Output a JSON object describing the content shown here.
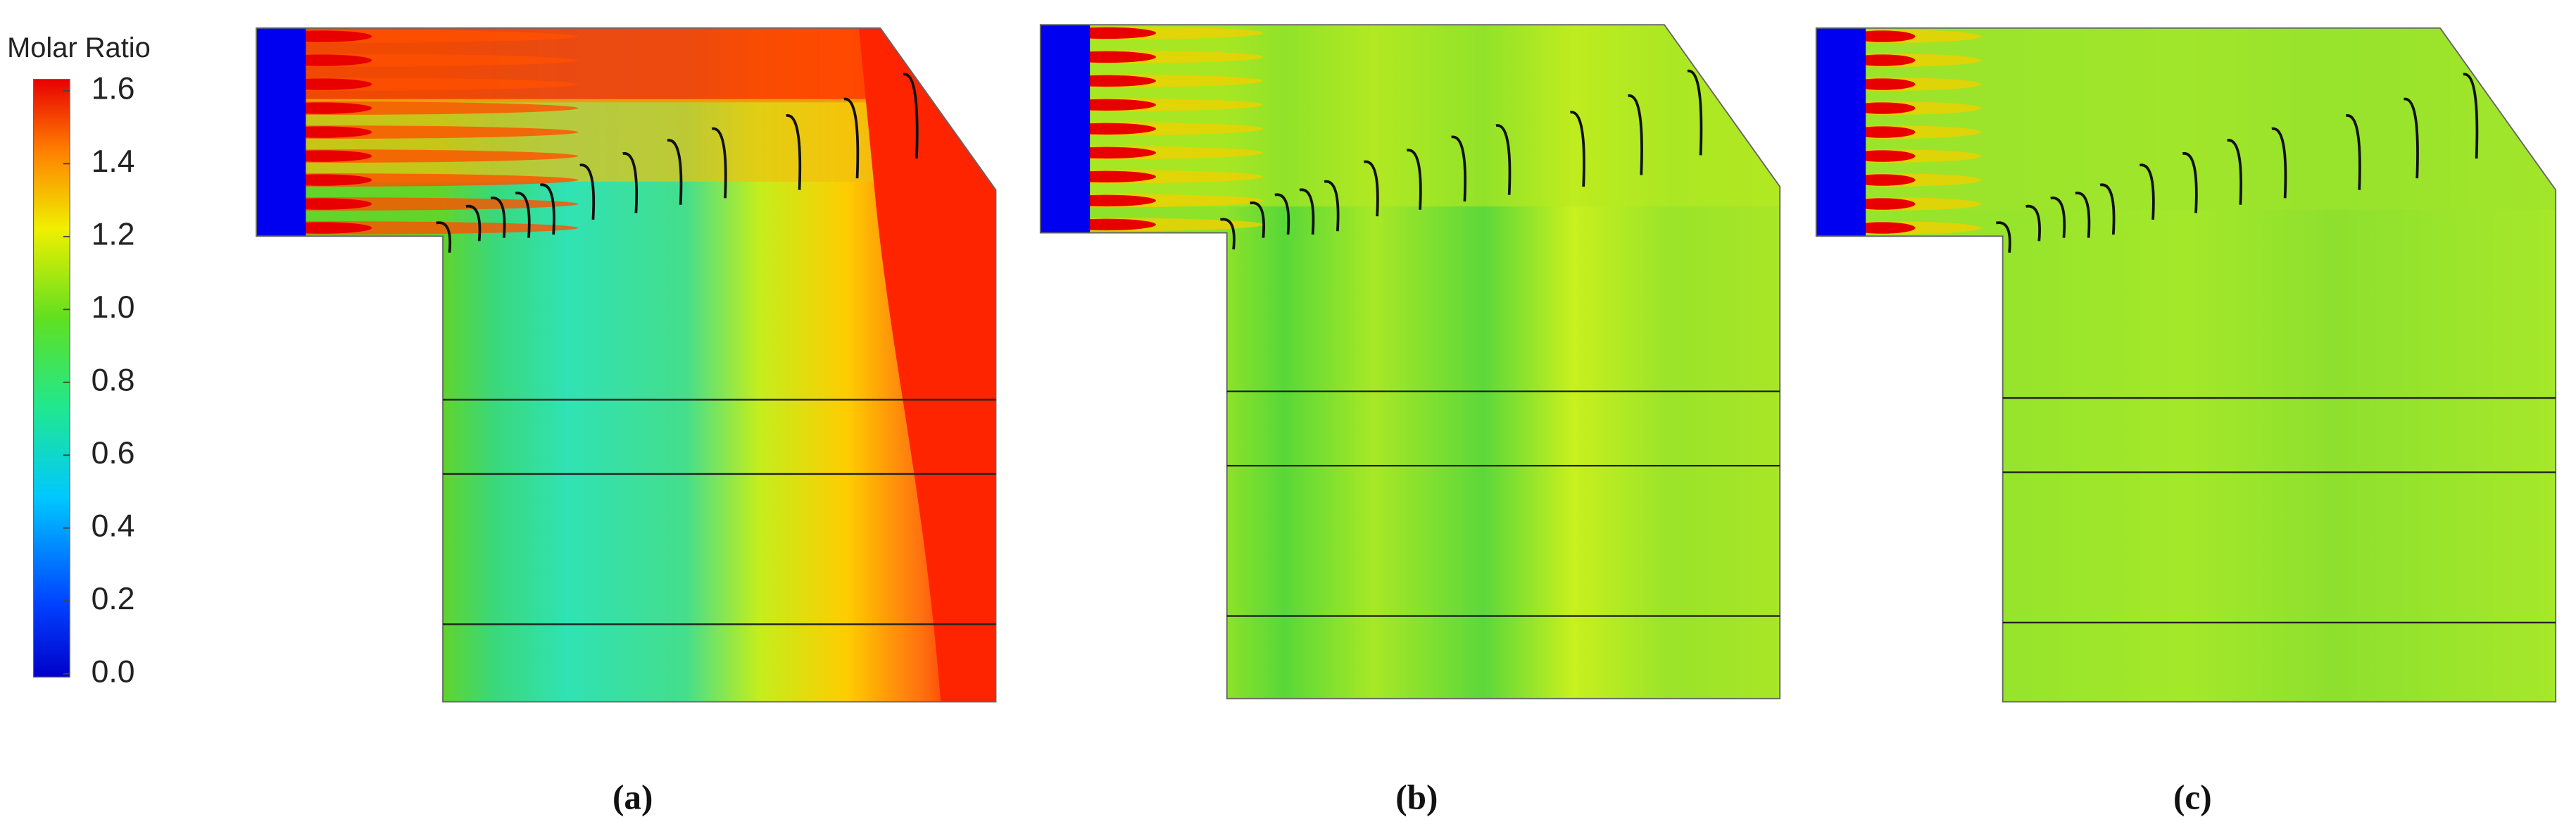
{
  "colorbar": {
    "title": "Molar Ratio",
    "range": [
      0,
      1.6
    ],
    "ticks": [
      {
        "value": 1.6,
        "label": "1.6"
      },
      {
        "value": 1.4,
        "label": "1.4"
      },
      {
        "value": 1.2,
        "label": "1.2"
      },
      {
        "value": 1.0,
        "label": "1.0"
      },
      {
        "value": 0.8,
        "label": "0.8"
      },
      {
        "value": 0.6,
        "label": "0.6"
      },
      {
        "value": 0.4,
        "label": "0.4"
      },
      {
        "value": 0.2,
        "label": "0.2"
      },
      {
        "value": 0.0,
        "label": "0.0"
      }
    ]
  },
  "panels": [
    {
      "label": "(a)"
    },
    {
      "label": "(b)"
    },
    {
      "label": "(c)"
    }
  ]
}
